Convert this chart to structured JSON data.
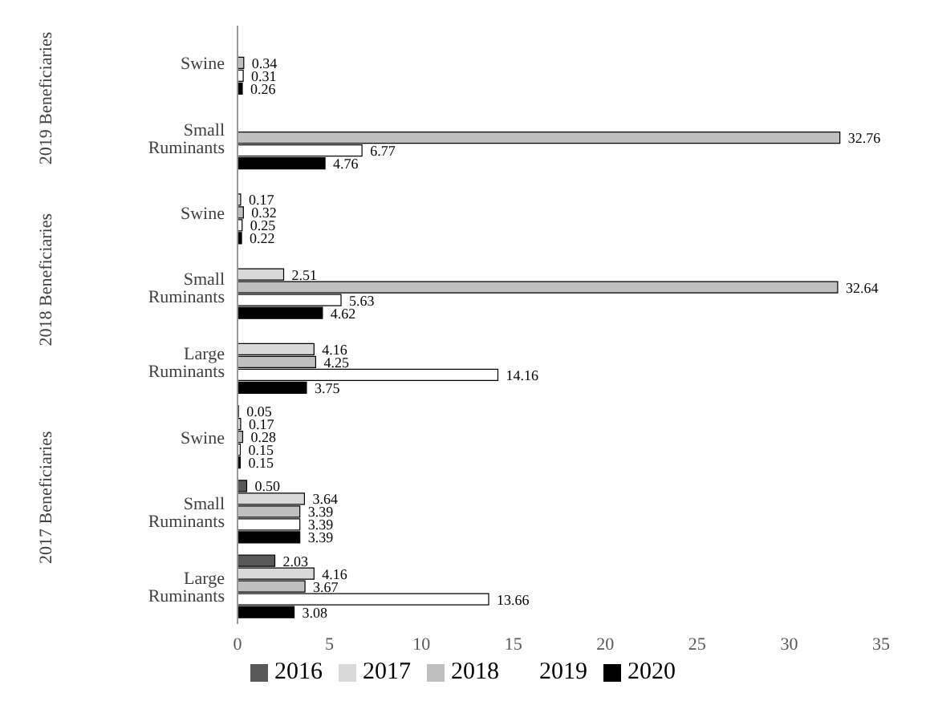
{
  "chart_data": {
    "type": "bar",
    "orientation": "horizontal",
    "categories": [
      "Swine",
      "Small Ruminants",
      "Swine",
      "Small Ruminants",
      "Large Ruminants",
      "Swine",
      "Small Ruminants",
      "Large Ruminants"
    ],
    "annotations": [
      "2019 Beneficiaries",
      "2018 Beneficiaries",
      "2017 Beneficiaries"
    ],
    "series": [
      {
        "name": "2016",
        "color": "#595959",
        "values": [
          null,
          null,
          null,
          null,
          null,
          0.05,
          0.5,
          2.03
        ],
        "value_labels": [
          null,
          null,
          null,
          null,
          null,
          "0.05",
          "0.50",
          "2.03"
        ]
      },
      {
        "name": "2017",
        "color": "#d9d9d9",
        "values": [
          null,
          null,
          0.17,
          2.51,
          4.16,
          0.17,
          3.64,
          4.16
        ],
        "value_labels": [
          null,
          null,
          "0.17",
          "2.51",
          "4.16",
          "0.17",
          "3.64",
          "4.16"
        ]
      },
      {
        "name": "2018",
        "color": "#bfbfbf",
        "values": [
          0.34,
          32.76,
          0.32,
          32.64,
          4.25,
          0.28,
          3.39,
          3.67
        ],
        "value_labels": [
          "0.34",
          "32.76",
          "0.32",
          "32.64",
          "4.25",
          "0.28",
          "3.39",
          "3.67"
        ]
      },
      {
        "name": "2019",
        "color": "#ffffff",
        "values": [
          0.31,
          6.77,
          0.25,
          5.63,
          14.16,
          0.15,
          3.39,
          13.66
        ],
        "value_labels": [
          "0.31",
          "6.77",
          "0.25",
          "5.63",
          "14.16",
          "0.15",
          "3.39",
          "13.66"
        ]
      },
      {
        "name": "2020",
        "color": "#000000",
        "values": [
          0.26,
          4.76,
          0.22,
          4.62,
          3.75,
          0.15,
          3.39,
          3.08
        ],
        "value_labels": [
          "0.26",
          "4.76",
          "0.22",
          "4.62",
          "3.75",
          "0.15",
          "3.39",
          "3.08"
        ]
      }
    ],
    "xlim": [
      0,
      35
    ],
    "xticks": [
      0,
      5,
      10,
      15,
      20,
      25,
      30,
      35
    ],
    "grid": false,
    "legend": "bottom"
  }
}
